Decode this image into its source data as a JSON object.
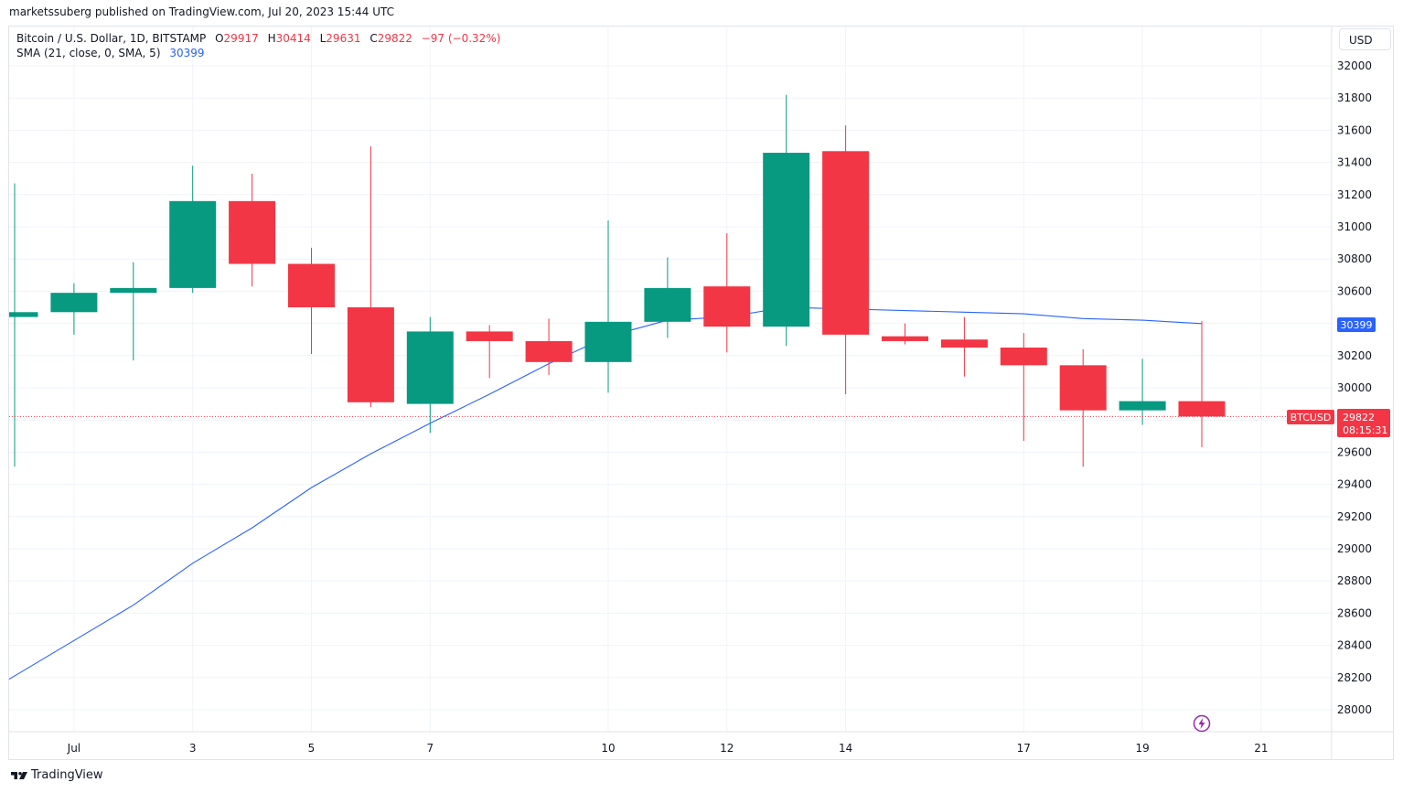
{
  "header": {
    "byline": "marketssuberg published on TradingView.com, Jul 20, 2023 15:44 UTC"
  },
  "legend": {
    "symbol": "Bitcoin / U.S. Dollar, 1D, BITSTAMP",
    "o_label": "O",
    "o_value": "29917",
    "h_label": "H",
    "h_value": "30414",
    "l_label": "L",
    "l_value": "29631",
    "c_label": "C",
    "c_value": "29822",
    "change": "−97 (−0.32%)",
    "sma_label": "SMA (21, close, 0, SMA, 5)",
    "sma_value": "30399"
  },
  "currency_button": "USD",
  "price_tags": {
    "sma_tag": "30399",
    "symbol_tag": "BTCUSD",
    "last_price": "29822",
    "countdown": "08:15:31"
  },
  "footer": {
    "brand": "TradingView"
  },
  "colors": {
    "up": "#089981",
    "down": "#f23645",
    "sma": "#2962ff",
    "grid": "#f0f3fa"
  },
  "chart_data": {
    "type": "candlestick",
    "symbol": "BTCUSD",
    "y_ticks": [
      28000,
      28200,
      28400,
      28600,
      28800,
      29000,
      29200,
      29400,
      29600,
      29800,
      30000,
      30200,
      30400,
      30600,
      30800,
      31000,
      31200,
      31400,
      31600,
      31800,
      32000
    ],
    "ylim": [
      27800,
      32200
    ],
    "x_ticks": [
      {
        "label": "Jul",
        "day": 1
      },
      {
        "label": "3",
        "day": 3
      },
      {
        "label": "5",
        "day": 5
      },
      {
        "label": "7",
        "day": 7
      },
      {
        "label": "10",
        "day": 10
      },
      {
        "label": "12",
        "day": 12
      },
      {
        "label": "14",
        "day": 14
      },
      {
        "label": "17",
        "day": 17
      },
      {
        "label": "19",
        "day": 19
      },
      {
        "label": "21",
        "day": 21
      }
    ],
    "candles": [
      {
        "day": 0,
        "open": 30440,
        "high": 31270,
        "low": 29510,
        "close": 30470
      },
      {
        "day": 1,
        "open": 30470,
        "high": 30650,
        "low": 30330,
        "close": 30590
      },
      {
        "day": 2,
        "open": 30590,
        "high": 30780,
        "low": 30170,
        "close": 30620
      },
      {
        "day": 3,
        "open": 30620,
        "high": 31380,
        "low": 30590,
        "close": 31160
      },
      {
        "day": 4,
        "open": 31160,
        "high": 31330,
        "low": 30630,
        "close": 30770
      },
      {
        "day": 5,
        "open": 30770,
        "high": 30870,
        "low": 30210,
        "close": 30500
      },
      {
        "day": 6,
        "open": 30500,
        "high": 31500,
        "low": 29880,
        "close": 29910
      },
      {
        "day": 7,
        "open": 29900,
        "high": 30440,
        "low": 29720,
        "close": 30350
      },
      {
        "day": 8,
        "open": 30350,
        "high": 30390,
        "low": 30060,
        "close": 30290
      },
      {
        "day": 9,
        "open": 30290,
        "high": 30430,
        "low": 30080,
        "close": 30160
      },
      {
        "day": 10,
        "open": 30160,
        "high": 31040,
        "low": 29970,
        "close": 30410
      },
      {
        "day": 11,
        "open": 30410,
        "high": 30810,
        "low": 30310,
        "close": 30620
      },
      {
        "day": 12,
        "open": 30630,
        "high": 30960,
        "low": 30220,
        "close": 30380
      },
      {
        "day": 13,
        "open": 30380,
        "high": 31820,
        "low": 30260,
        "close": 31460
      },
      {
        "day": 14,
        "open": 31470,
        "high": 31630,
        "low": 29960,
        "close": 30330
      },
      {
        "day": 15,
        "open": 30320,
        "high": 30400,
        "low": 30270,
        "close": 30290
      },
      {
        "day": 16,
        "open": 30300,
        "high": 30440,
        "low": 30070,
        "close": 30250
      },
      {
        "day": 17,
        "open": 30250,
        "high": 30340,
        "low": 29670,
        "close": 30140
      },
      {
        "day": 18,
        "open": 30140,
        "high": 30240,
        "low": 29510,
        "close": 29860
      },
      {
        "day": 19,
        "open": 29860,
        "high": 30180,
        "low": 29770,
        "close": 29917
      },
      {
        "day": 20,
        "open": 29917,
        "high": 30414,
        "low": 29631,
        "close": 29822
      }
    ],
    "sma_series": {
      "name": "SMA (21, close, 0, SMA, 5)",
      "days": [
        0,
        1,
        2,
        3,
        4,
        5,
        6,
        7,
        8,
        9,
        10,
        11,
        12,
        13,
        14,
        15,
        16,
        17,
        18,
        19,
        20
      ],
      "values": [
        28190,
        28430,
        28650,
        28910,
        29130,
        29380,
        29590,
        29780,
        29960,
        30150,
        30320,
        30420,
        30440,
        30500,
        30490,
        30480,
        30470,
        30460,
        30430,
        30420,
        30399
      ]
    },
    "last_price": 29822
  }
}
